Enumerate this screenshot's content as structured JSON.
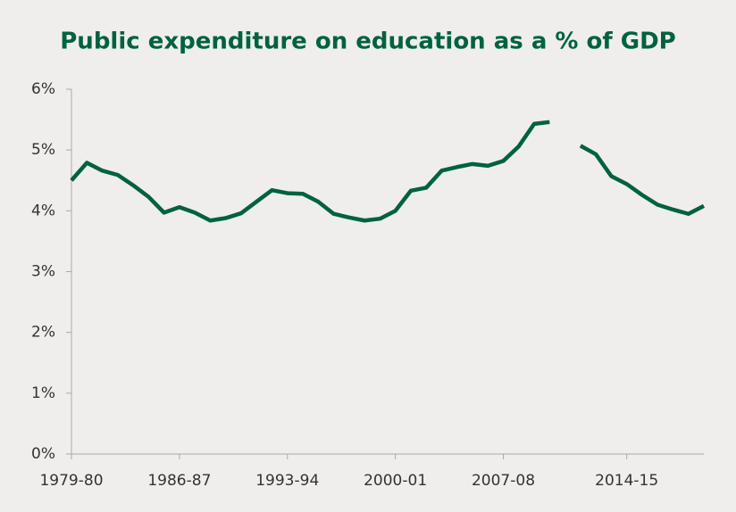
{
  "chart_data": {
    "type": "line",
    "title": "Public expenditure on education as a % of GDP",
    "categories": [
      "1979-80",
      "1980-81",
      "1981-82",
      "1982-83",
      "1983-84",
      "1984-85",
      "1985-86",
      "1986-87",
      "1987-88",
      "1988-89",
      "1989-90",
      "1990-91",
      "1991-92",
      "1992-93",
      "1993-94",
      "1994-95",
      "1995-96",
      "1996-97",
      "1997-98",
      "1998-99",
      "1999-00",
      "2000-01",
      "2001-02",
      "2002-03",
      "2003-04",
      "2004-05",
      "2005-06",
      "2006-07",
      "2007-08",
      "2008-09",
      "2009-10",
      "2010-11",
      null,
      "2011-12",
      "2012-13",
      "2013-14",
      "2014-15",
      "2015-16",
      "2016-17",
      "2017-18",
      "2018-19",
      "2019-20"
    ],
    "xticks": [
      "1979-80",
      "1986-87",
      "1993-94",
      "2000-01",
      "2007-08",
      "2014-15"
    ],
    "series": [
      {
        "name": "Public expenditure on education",
        "color": "#00623f",
        "values": [
          4.5,
          4.79,
          4.66,
          4.59,
          4.42,
          4.23,
          3.97,
          4.06,
          3.97,
          3.84,
          3.88,
          3.96,
          4.15,
          4.34,
          4.29,
          4.28,
          4.15,
          3.95,
          3.89,
          3.84,
          3.87,
          4.0,
          4.33,
          4.38,
          4.66,
          4.72,
          4.77,
          4.74,
          4.82,
          5.06,
          5.43,
          5.46,
          null,
          5.07,
          4.93,
          4.57,
          4.44,
          4.26,
          4.1,
          4.02,
          3.95,
          4.08
        ]
      }
    ],
    "ylim": [
      0,
      6
    ],
    "yticks": [
      {
        "value": 0,
        "label": "0%"
      },
      {
        "value": 1,
        "label": "1%"
      },
      {
        "value": 2,
        "label": "2%"
      },
      {
        "value": 3,
        "label": "3%"
      },
      {
        "value": 4,
        "label": "4%"
      },
      {
        "value": 5,
        "label": "5%"
      },
      {
        "value": 6,
        "label": "6%"
      }
    ]
  }
}
